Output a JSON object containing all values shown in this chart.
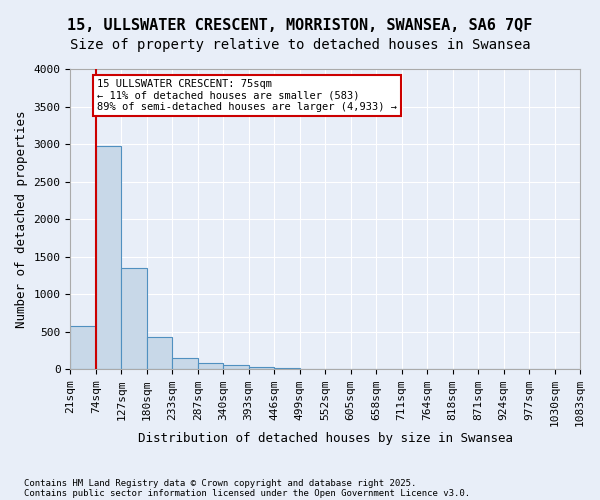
{
  "title1": "15, ULLSWATER CRESCENT, MORRISTON, SWANSEA, SA6 7QF",
  "title2": "Size of property relative to detached houses in Swansea",
  "xlabel": "Distribution of detached houses by size in Swansea",
  "ylabel": "Number of detached properties",
  "footnote1": "Contains HM Land Registry data © Crown copyright and database right 2025.",
  "footnote2": "Contains public sector information licensed under the Open Government Licence v3.0.",
  "bin_labels": [
    "21sqm",
    "74sqm",
    "127sqm",
    "180sqm",
    "233sqm",
    "287sqm",
    "340sqm",
    "393sqm",
    "446sqm",
    "499sqm",
    "552sqm",
    "605sqm",
    "658sqm",
    "711sqm",
    "764sqm",
    "818sqm",
    "871sqm",
    "924sqm",
    "977sqm",
    "1030sqm",
    "1083sqm"
  ],
  "bar_heights": [
    580,
    2970,
    1350,
    430,
    155,
    85,
    55,
    30,
    18,
    12,
    7,
    4,
    3,
    2,
    2,
    1,
    1,
    1,
    1,
    1
  ],
  "bar_color": "#c8d8e8",
  "bar_edge_color": "#5090c0",
  "annotation_text": "15 ULLSWATER CRESCENT: 75sqm\n← 11% of detached houses are smaller (583)\n89% of semi-detached houses are larger (4,933) →",
  "annotation_box_color": "#ffffff",
  "annotation_box_edge": "#cc0000",
  "red_line_color": "#cc0000",
  "ylim": [
    0,
    4000
  ],
  "yticks": [
    0,
    500,
    1000,
    1500,
    2000,
    2500,
    3000,
    3500,
    4000
  ],
  "background_color": "#e8eef8",
  "plot_background": "#e8eef8",
  "grid_color": "#ffffff",
  "title_fontsize": 11,
  "subtitle_fontsize": 10,
  "axis_label_fontsize": 9,
  "tick_fontsize": 8,
  "footnote_fontsize": 6.5
}
